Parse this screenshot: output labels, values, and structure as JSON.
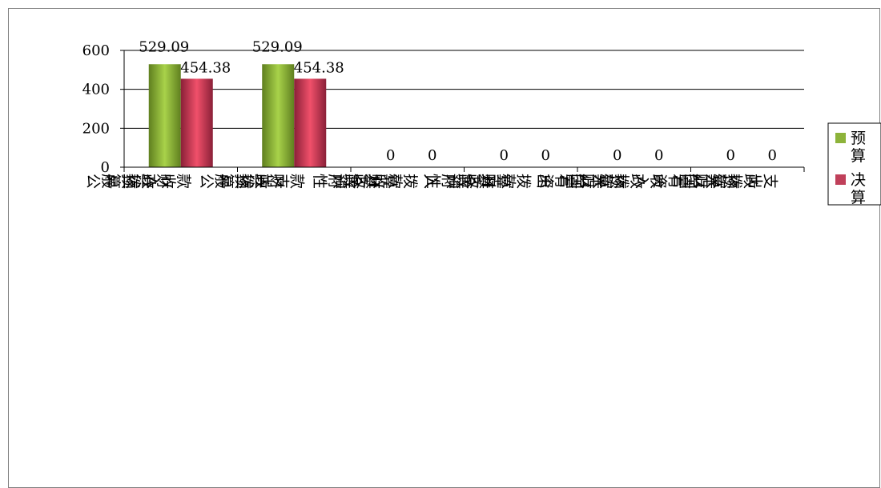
{
  "chart_data": {
    "type": "bar",
    "categories": [
      "一般公共预算财政拨款收入",
      "一般公共预算财政拨款支出",
      "政府性基金预算财政拨款收入",
      "政府性基金预算财政拨款支出",
      "国有资本经营预算财政拨款收入",
      "国有资本经营预算财政拨款支出"
    ],
    "category_lines": [
      [
        "一般公",
        "共预算",
        "财政拨",
        "款收入"
      ],
      [
        "一般公",
        "共预算",
        "财政拨",
        "款支出"
      ],
      [
        "政府性",
        "基金预",
        "算财政",
        "拨款收",
        "入"
      ],
      [
        "政府性",
        "基金预",
        "算财政",
        "拨款支",
        "出"
      ],
      [
        "国有资",
        "本经营",
        "预算财",
        "政拨款",
        "收入"
      ],
      [
        "国有资",
        "本经营",
        "预算财",
        "政拨款",
        "支出"
      ]
    ],
    "series": [
      {
        "name": "预算",
        "values": [
          529.09,
          529.09,
          0,
          0,
          0,
          0
        ],
        "labels": [
          "529.09",
          "529.09",
          "0",
          "0",
          "0",
          "0"
        ],
        "color": "#8db33a"
      },
      {
        "name": "决算",
        "values": [
          454.38,
          454.38,
          0,
          0,
          0,
          0
        ],
        "labels": [
          "454.38",
          "454.38",
          "0",
          "0",
          "0",
          "0"
        ],
        "color": "#c0405a"
      }
    ],
    "yticks": [
      "600",
      "400",
      "200",
      "0"
    ],
    "ylim": [
      0,
      600
    ],
    "grid": true,
    "legend": "right",
    "legend_labels": [
      [
        "预",
        "算"
      ],
      [
        "决",
        "算"
      ]
    ]
  }
}
